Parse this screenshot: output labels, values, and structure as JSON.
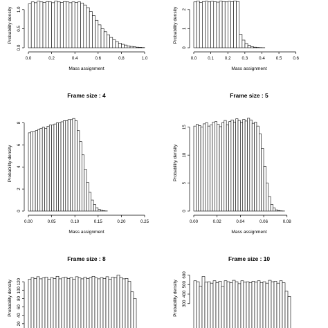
{
  "chart_data": [
    {
      "id": "p1",
      "type": "bar",
      "title": "",
      "xlabel": "Mass assignment",
      "ylabel": "Probability density",
      "xlim": [
        0,
        1.0
      ],
      "ylim": [
        0,
        1.25
      ],
      "xticks": [
        "0.0",
        "0.2",
        "0.4",
        "0.6",
        "0.8",
        "1.0"
      ],
      "yticks": [
        "0.0",
        "0.5",
        "1.0"
      ],
      "bin_start": 0.0,
      "bin_width": 0.025,
      "values": [
        1.15,
        1.2,
        1.18,
        1.22,
        1.2,
        1.19,
        1.21,
        1.2,
        1.18,
        1.22,
        1.2,
        1.19,
        1.21,
        1.2,
        1.18,
        1.2,
        1.19,
        1.2,
        1.17,
        1.12,
        1.05,
        0.95,
        0.84,
        0.72,
        0.6,
        0.5,
        0.42,
        0.34,
        0.27,
        0.21,
        0.16,
        0.12,
        0.09,
        0.07,
        0.05,
        0.035,
        0.025,
        0.015,
        0.01,
        0.005
      ]
    },
    {
      "id": "p2",
      "type": "bar",
      "title": "",
      "xlabel": "Mass assignment",
      "ylabel": "Probability density",
      "xlim": [
        0,
        0.65
      ],
      "ylim": [
        0,
        2.5
      ],
      "xticks": [
        "0.0",
        "0.1",
        "0.2",
        "0.3",
        "0.4",
        "0.5",
        "0.6"
      ],
      "yticks": [
        "0",
        "1",
        "2"
      ],
      "bin_start": 0.0,
      "bin_width": 0.0167,
      "values": [
        2.4,
        2.45,
        2.38,
        2.42,
        2.44,
        2.4,
        2.43,
        2.41,
        2.39,
        2.44,
        2.42,
        2.4,
        2.43,
        2.41,
        2.45,
        2.42,
        0.7,
        0.4,
        0.22,
        0.12,
        0.06,
        0.03,
        0.015,
        0.008,
        0.004
      ]
    },
    {
      "id": "p3",
      "type": "bar",
      "title": "Frame size : 4",
      "xlabel": "Mass assignment",
      "ylabel": "Probability density",
      "xlim": [
        0,
        0.25
      ],
      "ylim": [
        0,
        8.6
      ],
      "xticks": [
        "0.00",
        "0.05",
        "0.10",
        "0.15",
        "0.20",
        "0.25"
      ],
      "yticks": [
        "0",
        "2",
        "4",
        "6",
        "8"
      ],
      "bin_start": 0.0,
      "bin_width": 0.005,
      "values": [
        7.1,
        7.2,
        7.2,
        7.3,
        7.4,
        7.5,
        7.6,
        7.5,
        7.7,
        7.8,
        7.8,
        7.9,
        8.0,
        8.0,
        8.1,
        8.2,
        8.2,
        8.3,
        8.3,
        8.4,
        8.2,
        7.3,
        6.3,
        5.1,
        3.8,
        2.6,
        1.7,
        1.0,
        0.6,
        0.3,
        0.15,
        0.07,
        0.03,
        0.01
      ]
    },
    {
      "id": "p4",
      "type": "bar",
      "title": "Frame size : 5",
      "xlabel": "Mass assignment",
      "ylabel": "Probability density",
      "xlim": [
        0,
        0.095
      ],
      "ylim": [
        0,
        17.2
      ],
      "xticks": [
        "0.00",
        "0.02",
        "0.04",
        "0.06",
        "0.08"
      ],
      "yticks": [
        "0",
        "5",
        "10",
        "15"
      ],
      "bin_start": 0.0,
      "bin_width": 0.002,
      "values": [
        15.2,
        15.5,
        15.3,
        15.0,
        15.6,
        15.8,
        15.2,
        15.4,
        15.9,
        16.0,
        15.5,
        15.1,
        15.8,
        16.2,
        15.4,
        16.0,
        16.3,
        15.9,
        16.5,
        16.2,
        15.8,
        16.4,
        16.1,
        16.6,
        16.3,
        15.7,
        15.9,
        15.2,
        13.8,
        11.2,
        8.0,
        5.0,
        2.6,
        1.2,
        0.55,
        0.22,
        0.1,
        0.04,
        0.015
      ]
    },
    {
      "id": "p5",
      "type": "bar",
      "title": "Frame size : 8",
      "xlabel": "",
      "ylabel": "Probability density",
      "xlim": [
        0,
        0.042
      ],
      "ylim": [
        0,
        145
      ],
      "xticks": [],
      "yticks": [
        "0",
        "20",
        "40",
        "60",
        "80",
        "100",
        "120"
      ],
      "bin_start": 0.0,
      "bin_width": 0.001,
      "values": [
        126,
        130,
        128,
        132,
        127,
        129,
        131,
        126,
        130,
        128,
        133,
        127,
        129,
        131,
        128,
        130,
        126,
        132,
        129,
        127,
        131,
        128,
        130,
        133,
        129,
        127,
        130,
        128,
        132,
        126,
        131,
        129,
        136,
        130,
        127,
        128,
        121,
        96,
        80
      ]
    },
    {
      "id": "p6",
      "type": "bar",
      "title": "Frame size : 10",
      "xlabel": "",
      "ylabel": "Probability density",
      "xlim": [
        0,
        0.008
      ],
      "ylim": [
        0,
        640
      ],
      "xticks": [],
      "yticks": [
        "300",
        "400",
        "500",
        "600"
      ],
      "bin_start": 0.0,
      "bin_width": 0.0002,
      "values": [
        540,
        530,
        485,
        585,
        525,
        530,
        515,
        540,
        520,
        535,
        480,
        540,
        530,
        520,
        545,
        530,
        510,
        540,
        525,
        530,
        520,
        535,
        525,
        540,
        520,
        530,
        515,
        545,
        530,
        535,
        515,
        540,
        520,
        430,
        375
      ]
    }
  ]
}
